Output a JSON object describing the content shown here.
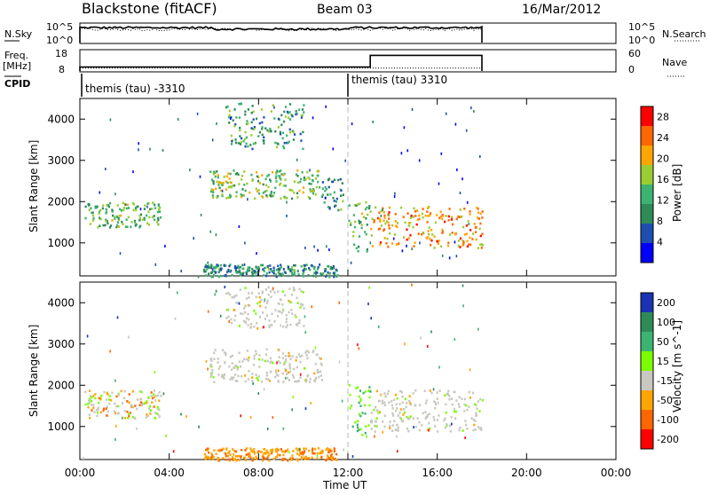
{
  "header": {
    "station": "Blackstone (fitACF)",
    "beam": "Beam 03",
    "date": "16/Mar/2012"
  },
  "top_panels": {
    "nsky_label": "N.Sky",
    "nsky_ticks": [
      "10^5",
      "10^0"
    ],
    "nsearch_label": "N.Search",
    "nsearch_ticks": [
      "10^5",
      "10^0"
    ],
    "freq_label": "Freq.",
    "freq_unit": "[MHz]",
    "freq_ticks": [
      "18",
      "8"
    ],
    "nave_label": "Nave",
    "nave_ticks": [
      "60",
      "0"
    ],
    "cpid_label": "CPID",
    "cpid_segments": [
      {
        "label": "themis (tau) -3310",
        "start_hour": 0
      },
      {
        "label": "themis (tau) 3310",
        "start_hour": 12
      }
    ]
  },
  "x_axis": {
    "label": "Time UT",
    "ticks": [
      "00:00",
      "04:00",
      "08:00",
      "12:00",
      "16:00",
      "20:00",
      "00:00"
    ]
  },
  "chart_data": [
    {
      "type": "line",
      "name": "N.Sky / N.Search",
      "x_range_hours": [
        0,
        24
      ],
      "data_end_hour": 18,
      "log_scale": true,
      "nsky_approx_log10": 4.2,
      "nsearch_approx_log10": 3.7
    },
    {
      "type": "line",
      "name": "Frequency / Nave",
      "series": [
        {
          "name": "Freq.",
          "x": [
            0,
            13,
            13,
            18
          ],
          "y": [
            10,
            10,
            16,
            16
          ],
          "unit": "MHz"
        },
        {
          "name": "Nave",
          "x": [
            0,
            18
          ],
          "y": [
            9,
            9
          ]
        }
      ],
      "ylim_freq": [
        8,
        18
      ],
      "ylim_nave": [
        0,
        60
      ]
    },
    {
      "type": "heatmap",
      "name": "Power",
      "ylabel": "Slant Range [km]",
      "y_ticks": [
        1000,
        2000,
        3000,
        4000
      ],
      "ylim": [
        200,
        4500
      ],
      "xlim_hours": [
        0,
        24
      ],
      "colorbar_label": "Power [dB]",
      "colorbar_ticks": [
        4,
        8,
        12,
        16,
        20,
        24,
        28
      ],
      "colorbar_range": [
        0,
        30
      ],
      "colors": [
        "#0000ff",
        "#1e4fb0",
        "#2e8b57",
        "#3cb371",
        "#9acd32",
        "#ffa500",
        "#ff6600",
        "#ff0000"
      ],
      "echo_regions": [
        {
          "t0": 0.2,
          "t1": 3.6,
          "r0": 1400,
          "r1": 2000,
          "level": 0.45
        },
        {
          "t0": 5.8,
          "t1": 10.8,
          "r0": 2100,
          "r1": 2800,
          "level": 0.5
        },
        {
          "t0": 6.5,
          "t1": 10.0,
          "r0": 3300,
          "r1": 4400,
          "level": 0.35
        },
        {
          "t0": 10.8,
          "t1": 11.8,
          "r0": 1800,
          "r1": 2600,
          "level": 0.3
        },
        {
          "t0": 12.0,
          "t1": 13.0,
          "r0": 800,
          "r1": 2100,
          "level": 0.45
        },
        {
          "t0": 13.0,
          "t1": 18.0,
          "r0": 900,
          "r1": 1900,
          "level": 0.75
        },
        {
          "t0": 5.5,
          "t1": 11.5,
          "r0": 200,
          "r1": 500,
          "level": 0.3
        }
      ]
    },
    {
      "type": "heatmap",
      "name": "Velocity",
      "ylabel": "Slant Range [km]",
      "y_ticks": [
        1000,
        2000,
        3000,
        4000
      ],
      "ylim": [
        200,
        4500
      ],
      "xlim_hours": [
        0,
        24
      ],
      "colorbar_label": "Velocity [m s^-1]",
      "colorbar_ticks": [
        200,
        100,
        50,
        15,
        -15,
        -50,
        -100,
        -200
      ],
      "colors": [
        "#1a33b3",
        "#2e8b57",
        "#3cb371",
        "#7cfc00",
        "#c8c8c0",
        "#ffa500",
        "#ff6600",
        "#ff0000"
      ],
      "echo_regions": [
        {
          "t0": 0.2,
          "t1": 3.6,
          "r0": 1200,
          "r1": 1900,
          "vel": "mixed"
        },
        {
          "t0": 5.8,
          "t1": 10.8,
          "r0": 2100,
          "r1": 2900,
          "vel": "near-zero"
        },
        {
          "t0": 6.5,
          "t1": 10.0,
          "r0": 3400,
          "r1": 4400,
          "vel": "near-zero"
        },
        {
          "t0": 12.0,
          "t1": 13.0,
          "r0": 800,
          "r1": 2100,
          "vel": "positive"
        },
        {
          "t0": 13.0,
          "t1": 18.0,
          "r0": 900,
          "r1": 1900,
          "vel": "near-zero"
        },
        {
          "t0": 5.5,
          "t1": 11.5,
          "r0": 200,
          "r1": 500,
          "vel": "negative"
        }
      ]
    }
  ]
}
